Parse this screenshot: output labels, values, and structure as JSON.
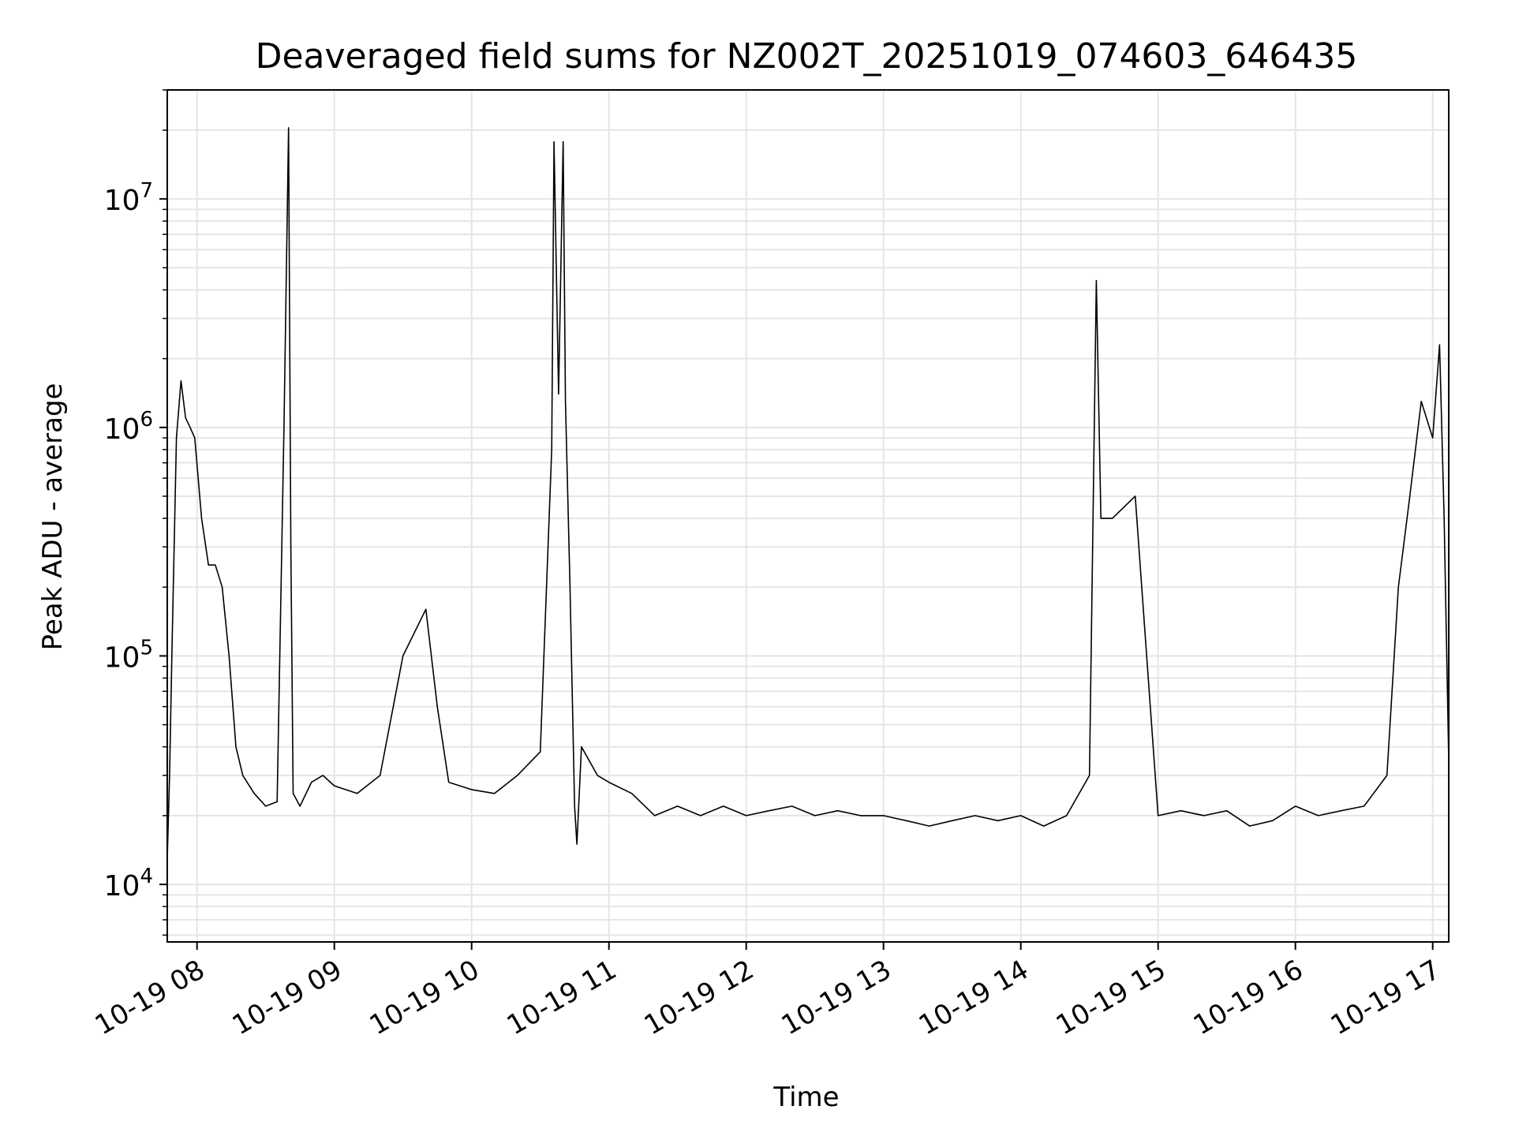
{
  "chart_data": {
    "type": "line",
    "title": "Deaveraged field sums for NZ002T_20251019_074603_646435",
    "xlabel": "Time",
    "ylabel": "Peak ADU - average",
    "yscale": "log",
    "ylim": [
      5600,
      30000000
    ],
    "xlim": [
      "2025-10-19 07:47",
      "2025-10-19 17:07"
    ],
    "grid": true,
    "line_color": "#000000",
    "grid_color": "#e5e5e5",
    "x_ticks": [
      {
        "label": "10-19 08",
        "value": "2025-10-19 08:00"
      },
      {
        "label": "10-19 09",
        "value": "2025-10-19 09:00"
      },
      {
        "label": "10-19 10",
        "value": "2025-10-19 10:00"
      },
      {
        "label": "10-19 11",
        "value": "2025-10-19 11:00"
      },
      {
        "label": "10-19 12",
        "value": "2025-10-19 12:00"
      },
      {
        "label": "10-19 13",
        "value": "2025-10-19 13:00"
      },
      {
        "label": "10-19 14",
        "value": "2025-10-19 14:00"
      },
      {
        "label": "10-19 15",
        "value": "2025-10-19 15:00"
      },
      {
        "label": "10-19 16",
        "value": "2025-10-19 16:00"
      },
      {
        "label": "10-19 17",
        "value": "2025-10-19 17:00"
      }
    ],
    "y_ticks": [
      {
        "base": "10",
        "exp": "4",
        "value": 10000
      },
      {
        "base": "10",
        "exp": "5",
        "value": 100000
      },
      {
        "base": "10",
        "exp": "6",
        "value": 1000000
      },
      {
        "base": "10",
        "exp": "7",
        "value": 10000000
      }
    ],
    "series": [
      {
        "x": [
          "07:47",
          "07:48",
          "07:49",
          "07:51",
          "07:53",
          "07:55",
          "07:57",
          "07:59",
          "08:02",
          "08:05",
          "08:08",
          "08:11",
          "08:14",
          "08:17",
          "08:20",
          "08:25",
          "08:30",
          "08:35",
          "08:38",
          "08:40",
          "08:41",
          "08:42",
          "08:45",
          "08:50",
          "08:55",
          "09:00",
          "09:10",
          "09:20",
          "09:30",
          "09:40",
          "09:45",
          "09:50",
          "10:00",
          "10:10",
          "10:20",
          "10:30",
          "10:35",
          "10:36",
          "10:38",
          "10:40",
          "10:41",
          "10:43",
          "10:45",
          "10:46",
          "10:48",
          "10:55",
          "11:00",
          "11:10",
          "11:20",
          "11:30",
          "11:40",
          "11:50",
          "12:00",
          "12:10",
          "12:20",
          "12:30",
          "12:40",
          "12:50",
          "13:00",
          "13:10",
          "13:20",
          "13:30",
          "13:40",
          "13:50",
          "14:00",
          "14:10",
          "14:20",
          "14:30",
          "14:33",
          "14:35",
          "14:40",
          "14:50",
          "15:00",
          "15:10",
          "15:20",
          "15:30",
          "15:40",
          "15:50",
          "16:00",
          "16:10",
          "16:20",
          "16:30",
          "16:40",
          "16:45",
          "16:50",
          "16:55",
          "17:00",
          "17:03",
          "17:05",
          "17:07"
        ],
        "y": [
          13000,
          30000,
          100000,
          900000,
          1600000,
          1100000,
          1000000,
          900000,
          400000,
          250000,
          250000,
          200000,
          100000,
          40000,
          30000,
          25000,
          22000,
          23000,
          1000000,
          20500000,
          300000,
          25000,
          22000,
          28000,
          30000,
          27000,
          25000,
          30000,
          100000,
          160000,
          60000,
          28000,
          26000,
          25000,
          30000,
          38000,
          800000,
          17800000,
          1400000,
          17800000,
          1300000,
          200000,
          22000,
          15000,
          40000,
          30000,
          28000,
          25000,
          20000,
          22000,
          20000,
          22000,
          20000,
          21000,
          22000,
          20000,
          21000,
          20000,
          20000,
          19000,
          18000,
          19000,
          20000,
          19000,
          20000,
          18000,
          20000,
          30000,
          4400000,
          400000,
          400000,
          500000,
          20000,
          21000,
          20000,
          21000,
          18000,
          19000,
          22000,
          20000,
          21000,
          22000,
          30000,
          200000,
          500000,
          1300000,
          900000,
          2300000,
          400000,
          35000
        ]
      }
    ]
  }
}
